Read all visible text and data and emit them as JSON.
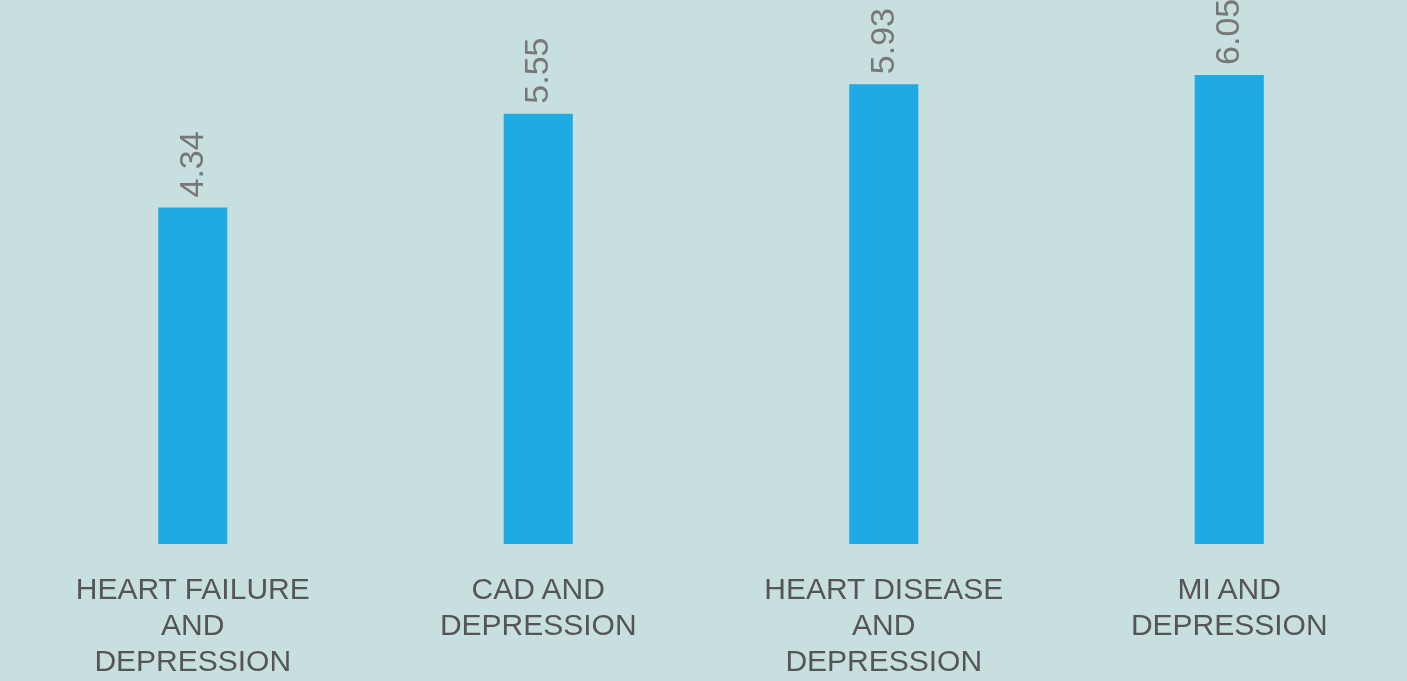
{
  "chart_data": {
    "type": "bar",
    "categories": [
      "HEART FAILURE AND DEPRESSION",
      "CAD AND DEPRESSION",
      "HEART DISEASE AND DEPRESSION",
      "MI AND DEPRESSION"
    ],
    "values": [
      4.34,
      5.55,
      5.93,
      6.05
    ],
    "color": "#1eabe3",
    "data_labels": true,
    "tick_labels": "x"
  }
}
